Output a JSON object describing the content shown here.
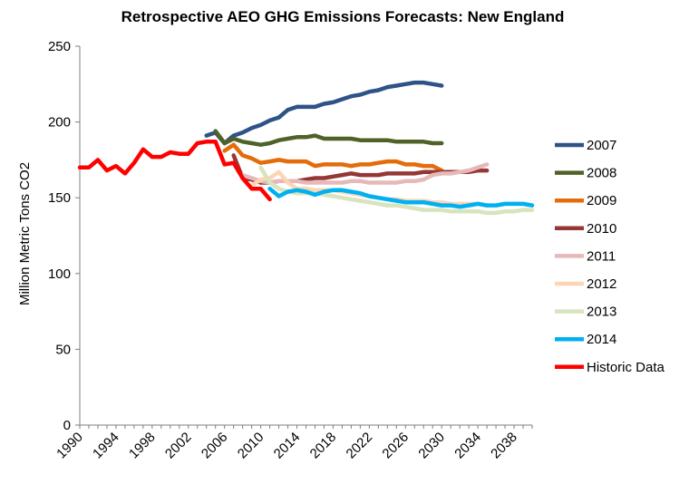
{
  "chart_data": {
    "type": "line",
    "title": "Retrospective AEO GHG Emissions Forecasts: New England",
    "xlabel": "",
    "ylabel": "Million Metric Tons CO2",
    "xlim": [
      1990,
      2040
    ],
    "ylim": [
      0,
      250
    ],
    "yticks": [
      0,
      50,
      100,
      150,
      200,
      250
    ],
    "xticks": [
      1990,
      1994,
      1998,
      2002,
      2006,
      2010,
      2014,
      2018,
      2022,
      2026,
      2030,
      2034,
      2038
    ],
    "grid": false,
    "legend_position": "right",
    "series": [
      {
        "name": "2007",
        "color": "#2e5387",
        "x": [
          2004,
          2005,
          2006,
          2007,
          2008,
          2009,
          2010,
          2011,
          2012,
          2013,
          2014,
          2015,
          2016,
          2017,
          2018,
          2019,
          2020,
          2021,
          2022,
          2023,
          2024,
          2025,
          2026,
          2027,
          2028,
          2029,
          2030
        ],
        "y": [
          191,
          193,
          186,
          191,
          193,
          196,
          198,
          201,
          203,
          208,
          210,
          210,
          210,
          212,
          213,
          215,
          217,
          218,
          220,
          221,
          223,
          224,
          225,
          226,
          226,
          225,
          224
        ]
      },
      {
        "name": "2008",
        "color": "#4f6228",
        "x": [
          2005,
          2006,
          2007,
          2008,
          2009,
          2010,
          2011,
          2012,
          2013,
          2014,
          2015,
          2016,
          2017,
          2018,
          2019,
          2020,
          2021,
          2022,
          2023,
          2024,
          2025,
          2026,
          2027,
          2028,
          2029,
          2030
        ],
        "y": [
          194,
          186,
          189,
          187,
          186,
          185,
          186,
          188,
          189,
          190,
          190,
          191,
          189,
          189,
          189,
          189,
          188,
          188,
          188,
          188,
          187,
          187,
          187,
          187,
          186,
          186
        ]
      },
      {
        "name": "2009",
        "color": "#e46c0a",
        "x": [
          2006,
          2007,
          2008,
          2009,
          2010,
          2011,
          2012,
          2013,
          2014,
          2015,
          2016,
          2017,
          2018,
          2019,
          2020,
          2021,
          2022,
          2023,
          2024,
          2025,
          2026,
          2027,
          2028,
          2029,
          2030
        ],
        "y": [
          181,
          185,
          178,
          176,
          173,
          174,
          175,
          174,
          174,
          174,
          171,
          172,
          172,
          172,
          171,
          172,
          172,
          173,
          174,
          174,
          172,
          172,
          171,
          171,
          168
        ]
      },
      {
        "name": "2010",
        "color": "#953735",
        "x": [
          2007,
          2008,
          2009,
          2010,
          2011,
          2012,
          2013,
          2014,
          2015,
          2016,
          2017,
          2018,
          2019,
          2020,
          2021,
          2022,
          2023,
          2024,
          2025,
          2026,
          2027,
          2028,
          2029,
          2030,
          2031,
          2032,
          2033,
          2034,
          2035
        ],
        "y": [
          178,
          163,
          162,
          160,
          160,
          161,
          161,
          161,
          162,
          163,
          163,
          164,
          165,
          166,
          165,
          165,
          165,
          166,
          166,
          166,
          166,
          167,
          167,
          167,
          167,
          167,
          167,
          168,
          168
        ]
      },
      {
        "name": "2011",
        "color": "#e6b9b8",
        "x": [
          2008,
          2009,
          2010,
          2011,
          2012,
          2013,
          2014,
          2015,
          2016,
          2017,
          2018,
          2019,
          2020,
          2021,
          2022,
          2023,
          2024,
          2025,
          2026,
          2027,
          2028,
          2029,
          2030,
          2031,
          2032,
          2033,
          2034,
          2035
        ],
        "y": [
          165,
          163,
          161,
          160,
          161,
          161,
          161,
          160,
          160,
          160,
          160,
          160,
          161,
          161,
          160,
          160,
          160,
          160,
          161,
          161,
          162,
          165,
          166,
          166,
          167,
          168,
          170,
          172
        ]
      },
      {
        "name": "2012",
        "color": "#fcd5b5",
        "x": [
          2009,
          2010,
          2011,
          2012,
          2013,
          2014,
          2015,
          2016,
          2017,
          2018,
          2019,
          2020,
          2021,
          2022,
          2023,
          2024,
          2025,
          2026,
          2027,
          2028,
          2029,
          2030,
          2031,
          2032,
          2033,
          2034,
          2035
        ],
        "y": [
          158,
          162,
          163,
          167,
          160,
          156,
          156,
          155,
          155,
          155,
          154,
          153,
          152,
          151,
          150,
          149,
          149,
          148,
          148,
          148,
          147,
          147,
          146,
          146,
          146,
          146,
          145
        ]
      },
      {
        "name": "2013",
        "color": "#d7e4bd",
        "x": [
          2010,
          2011,
          2012,
          2013,
          2014,
          2015,
          2016,
          2017,
          2018,
          2019,
          2020,
          2021,
          2022,
          2023,
          2024,
          2025,
          2026,
          2027,
          2028,
          2029,
          2030,
          2031,
          2032,
          2033,
          2034,
          2035,
          2036,
          2037,
          2038,
          2039,
          2040
        ],
        "y": [
          170,
          160,
          156,
          154,
          153,
          153,
          153,
          152,
          151,
          150,
          149,
          148,
          147,
          146,
          145,
          145,
          144,
          143,
          142,
          142,
          142,
          141,
          141,
          141,
          141,
          140,
          140,
          141,
          141,
          142,
          142
        ]
      },
      {
        "name": "2014",
        "color": "#00b0f0",
        "x": [
          2011,
          2012,
          2013,
          2014,
          2015,
          2016,
          2017,
          2018,
          2019,
          2020,
          2021,
          2022,
          2023,
          2024,
          2025,
          2026,
          2027,
          2028,
          2029,
          2030,
          2031,
          2032,
          2033,
          2034,
          2035,
          2036,
          2037,
          2038,
          2039,
          2040
        ],
        "y": [
          156,
          151,
          154,
          155,
          154,
          152,
          154,
          155,
          155,
          154,
          153,
          151,
          150,
          149,
          148,
          147,
          147,
          147,
          146,
          145,
          145,
          144,
          145,
          146,
          145,
          145,
          146,
          146,
          146,
          145
        ]
      },
      {
        "name": "Historic Data",
        "color": "#ff0000",
        "x": [
          1990,
          1991,
          1992,
          1993,
          1994,
          1995,
          1996,
          1997,
          1998,
          1999,
          2000,
          2001,
          2002,
          2003,
          2004,
          2005,
          2006,
          2007,
          2008,
          2009,
          2010,
          2011
        ],
        "y": [
          170,
          170,
          175,
          168,
          171,
          166,
          173,
          182,
          177,
          177,
          180,
          179,
          179,
          186,
          187,
          187,
          172,
          173,
          163,
          156,
          156,
          149
        ]
      }
    ]
  }
}
